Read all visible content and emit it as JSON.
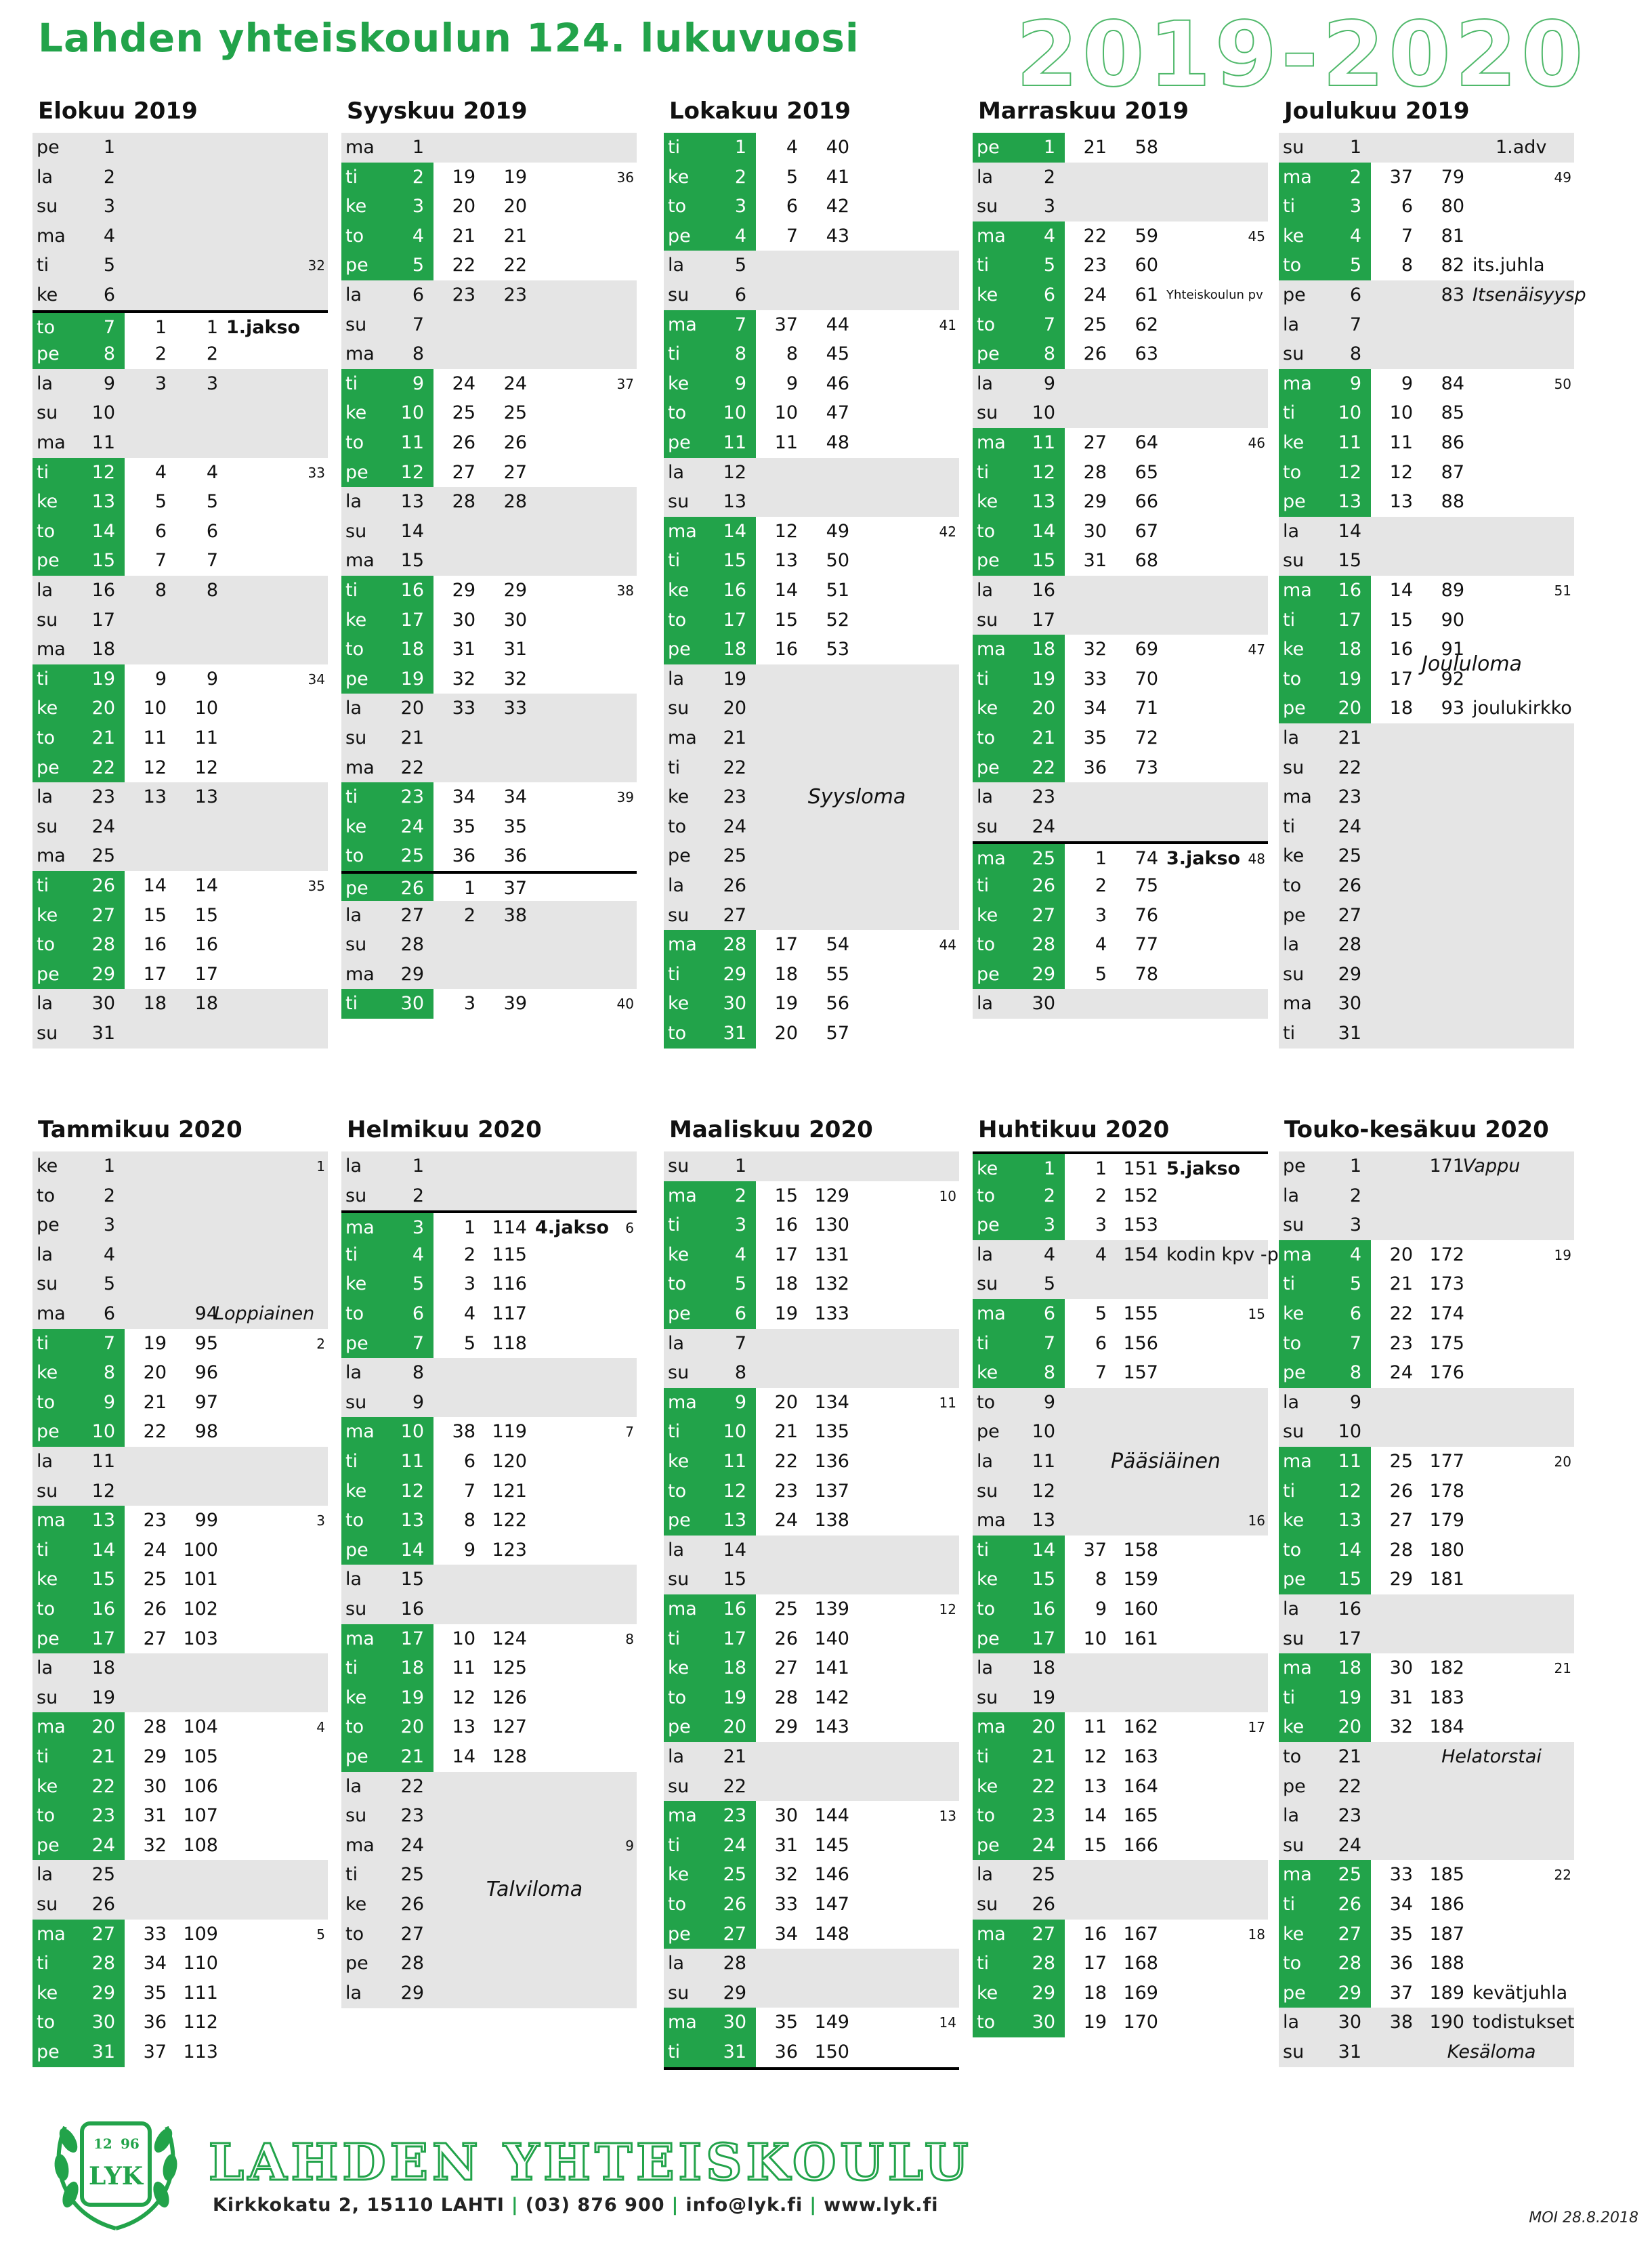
{
  "header": {
    "title": "Lahden  yhteiskoulun  124.  lukuvuosi",
    "year": "2019-2020"
  },
  "colors": {
    "green": "#22a34a",
    "weekend": "#e5e5e5"
  },
  "months": [
    {
      "title": "Elokuu 2019",
      "start": 5,
      "days": 31,
      "schoolStart": 7,
      "lessons": {
        "7": [
          1,
          1
        ],
        "8": [
          2,
          2
        ],
        "9": [
          3,
          3
        ],
        "12": [
          4,
          4
        ],
        "13": [
          5,
          5
        ],
        "14": [
          6,
          6
        ],
        "15": [
          7,
          7
        ],
        "16": [
          8,
          8
        ],
        "19": [
          9,
          9
        ],
        "20": [
          10,
          10
        ],
        "21": [
          11,
          11
        ],
        "22": [
          12,
          12
        ],
        "23": [
          13,
          13
        ],
        "26": [
          14,
          14
        ],
        "27": [
          15,
          15
        ],
        "28": [
          16,
          16
        ],
        "29": [
          17,
          17
        ],
        "30": [
          18,
          18
        ]
      },
      "weeks": {
        "5": "32",
        "12": "33",
        "19": "34",
        "26": "35"
      },
      "notes": {
        "7": "1.jakso"
      },
      "lines": [
        7
      ],
      "breaks": [],
      "label": null
    },
    {
      "title": "Syyskuu 2019",
      "start": 1,
      "days": 30,
      "schoolStart": 1,
      "lessons": {
        "2": [
          19,
          19
        ],
        "3": [
          20,
          20
        ],
        "4": [
          21,
          21
        ],
        "5": [
          22,
          22
        ],
        "6": [
          23,
          23
        ],
        "9": [
          24,
          24
        ],
        "10": [
          25,
          25
        ],
        "11": [
          26,
          26
        ],
        "12": [
          27,
          27
        ],
        "13": [
          28,
          28
        ],
        "16": [
          29,
          29
        ],
        "17": [
          30,
          30
        ],
        "18": [
          31,
          31
        ],
        "19": [
          32,
          32
        ],
        "20": [
          33,
          33
        ],
        "23": [
          34,
          34
        ],
        "24": [
          35,
          35
        ],
        "25": [
          36,
          36
        ],
        "26": [
          1,
          37
        ],
        "27": [
          2,
          38
        ],
        "30": [
          3,
          39
        ]
      },
      "weeks": {
        "2": "36",
        "9": "37",
        "16": "38",
        "23": "39",
        "30": "40"
      },
      "notes": {},
      "lines": [
        26
      ],
      "breaks": [],
      "label": null
    },
    {
      "title": "Lokakuu 2019",
      "start": 2,
      "days": 31,
      "schoolStart": 1,
      "lessons": {
        "1": [
          4,
          40
        ],
        "2": [
          5,
          41
        ],
        "3": [
          6,
          42
        ],
        "4": [
          7,
          43
        ],
        "7": [
          37,
          44
        ],
        "8": [
          8,
          45
        ],
        "9": [
          9,
          46
        ],
        "10": [
          10,
          47
        ],
        "11": [
          11,
          48
        ],
        "14": [
          12,
          49
        ],
        "15": [
          13,
          50
        ],
        "16": [
          14,
          51
        ],
        "17": [
          15,
          52
        ],
        "18": [
          16,
          53
        ],
        "28": [
          17,
          54
        ],
        "29": [
          18,
          55
        ],
        "30": [
          19,
          56
        ],
        "31": [
          20,
          57
        ]
      },
      "weeks": {
        "7": "41",
        "14": "42",
        "28": "44"
      },
      "notes": {},
      "lines": [],
      "breaks": [
        19,
        20,
        21,
        22,
        23,
        24,
        25,
        26,
        27
      ],
      "label": "Syysloma"
    },
    {
      "title": "Marraskuu 2019",
      "start": 5,
      "days": 30,
      "schoolStart": 1,
      "lessons": {
        "1": [
          21,
          58
        ],
        "4": [
          22,
          59
        ],
        "5": [
          23,
          60
        ],
        "6": [
          24,
          61
        ],
        "7": [
          25,
          62
        ],
        "8": [
          26,
          63
        ],
        "11": [
          27,
          64
        ],
        "12": [
          28,
          65
        ],
        "13": [
          29,
          66
        ],
        "14": [
          30,
          67
        ],
        "15": [
          31,
          68
        ],
        "18": [
          32,
          69
        ],
        "19": [
          33,
          70
        ],
        "20": [
          34,
          71
        ],
        "21": [
          35,
          72
        ],
        "22": [
          36,
          73
        ],
        "25": [
          1,
          74
        ],
        "26": [
          2,
          75
        ],
        "27": [
          3,
          76
        ],
        "28": [
          4,
          77
        ],
        "29": [
          5,
          78
        ]
      },
      "weeks": {
        "4": "45",
        "11": "46",
        "18": "47",
        "25": "48"
      },
      "notes": {
        "6": "Yhteiskoulun pv",
        "25": "3.jakso"
      },
      "lines": [
        25
      ],
      "breaks": [],
      "label": null
    },
    {
      "title": "Joulukuu 2019",
      "start": 7,
      "days": 31,
      "schoolStart": 1,
      "lessons": {
        "2": [
          37,
          79
        ],
        "3": [
          6,
          80
        ],
        "4": [
          7,
          81
        ],
        "5": [
          8,
          82
        ],
        "6": [
          "",
          83
        ],
        "9": [
          9,
          84
        ],
        "10": [
          10,
          85
        ],
        "11": [
          11,
          86
        ],
        "12": [
          12,
          87
        ],
        "13": [
          13,
          88
        ],
        "16": [
          14,
          89
        ],
        "17": [
          15,
          90
        ],
        "18": [
          16,
          91
        ],
        "19": [
          17,
          92
        ],
        "20": [
          18,
          93
        ]
      },
      "weeks": {
        "2": "49",
        "9": "50",
        "16": "51"
      },
      "notes": {
        "1": "1.adv",
        "5": "its.juhla",
        "6": "Itsenäisyysp",
        "20": "joulukirkko"
      },
      "lines": [],
      "breaks": [
        6,
        21,
        22,
        23,
        24,
        25,
        26,
        27,
        28,
        29,
        30,
        31
      ],
      "label": "Joululoma"
    },
    {
      "title": "Tammikuu 2020",
      "start": 3,
      "days": 31,
      "schoolStart": 1,
      "lessons": {
        "6": [
          "",
          94
        ],
        "7": [
          19,
          95
        ],
        "8": [
          20,
          96
        ],
        "9": [
          21,
          97
        ],
        "10": [
          22,
          98
        ],
        "13": [
          23,
          99
        ],
        "14": [
          24,
          100
        ],
        "15": [
          25,
          101
        ],
        "16": [
          26,
          102
        ],
        "17": [
          27,
          103
        ],
        "20": [
          28,
          104
        ],
        "21": [
          29,
          105
        ],
        "22": [
          30,
          106
        ],
        "23": [
          31,
          107
        ],
        "24": [
          32,
          108
        ],
        "27": [
          33,
          109
        ],
        "28": [
          34,
          110
        ],
        "29": [
          35,
          111
        ],
        "30": [
          36,
          112
        ],
        "31": [
          37,
          113
        ]
      },
      "weeks": {
        "1": "1",
        "7": "2",
        "13": "3",
        "20": "4",
        "27": "5"
      },
      "notes": {
        "6": "Loppiainen"
      },
      "lines": [],
      "breaks": [
        1,
        2,
        3,
        4,
        5,
        6
      ],
      "label": null
    },
    {
      "title": "Helmikuu 2020",
      "start": 6,
      "days": 29,
      "schoolStart": 1,
      "lessons": {
        "3": [
          1,
          114
        ],
        "4": [
          2,
          115
        ],
        "5": [
          3,
          116
        ],
        "6": [
          4,
          117
        ],
        "7": [
          5,
          118
        ],
        "10": [
          38,
          119
        ],
        "11": [
          6,
          120
        ],
        "12": [
          7,
          121
        ],
        "13": [
          8,
          122
        ],
        "14": [
          9,
          123
        ],
        "17": [
          10,
          124
        ],
        "18": [
          11,
          125
        ],
        "19": [
          12,
          126
        ],
        "20": [
          13,
          127
        ],
        "21": [
          14,
          128
        ]
      },
      "weeks": {
        "3": "6",
        "10": "7",
        "17": "8",
        "24": "9"
      },
      "notes": {
        "3": "4.jakso"
      },
      "lines": [
        3
      ],
      "breaks": [
        22,
        23,
        24,
        25,
        26,
        27,
        28,
        29
      ],
      "label": "Talviloma"
    },
    {
      "title": "Maaliskuu 2020",
      "start": 7,
      "days": 31,
      "schoolStart": 1,
      "lessons": {
        "2": [
          15,
          129
        ],
        "3": [
          16,
          130
        ],
        "4": [
          17,
          131
        ],
        "5": [
          18,
          132
        ],
        "6": [
          19,
          133
        ],
        "9": [
          20,
          134
        ],
        "10": [
          21,
          135
        ],
        "11": [
          22,
          136
        ],
        "12": [
          23,
          137
        ],
        "13": [
          24,
          138
        ],
        "16": [
          25,
          139
        ],
        "17": [
          26,
          140
        ],
        "18": [
          27,
          141
        ],
        "19": [
          28,
          142
        ],
        "20": [
          29,
          143
        ],
        "23": [
          30,
          144
        ],
        "24": [
          31,
          145
        ],
        "25": [
          32,
          146
        ],
        "26": [
          33,
          147
        ],
        "27": [
          34,
          148
        ],
        "30": [
          35,
          149
        ],
        "31": [
          36,
          150
        ]
      },
      "weeks": {
        "2": "10",
        "9": "11",
        "16": "12",
        "23": "13",
        "30": "14"
      },
      "notes": {},
      "lines": [
        32
      ],
      "breaks": [],
      "label": null
    },
    {
      "title": "Huhtikuu 2020",
      "start": 3,
      "days": 30,
      "schoolStart": 1,
      "lessons": {
        "1": [
          1,
          151
        ],
        "2": [
          2,
          152
        ],
        "3": [
          3,
          153
        ],
        "4": [
          4,
          154
        ],
        "6": [
          5,
          155
        ],
        "7": [
          6,
          156
        ],
        "8": [
          7,
          157
        ],
        "14": [
          37,
          158
        ],
        "15": [
          8,
          159
        ],
        "16": [
          9,
          160
        ],
        "17": [
          10,
          161
        ],
        "20": [
          11,
          162
        ],
        "21": [
          12,
          163
        ],
        "22": [
          13,
          164
        ],
        "23": [
          14,
          165
        ],
        "24": [
          15,
          166
        ],
        "27": [
          16,
          167
        ],
        "28": [
          17,
          168
        ],
        "29": [
          18,
          169
        ],
        "30": [
          19,
          170
        ]
      },
      "weeks": {
        "6": "15",
        "13": "16",
        "20": "17",
        "27": "18"
      },
      "notes": {
        "1": "5.jakso",
        "4": "kodin kpv -pe"
      },
      "lines": [
        1
      ],
      "breaks": [
        9,
        10,
        11,
        12,
        13
      ],
      "label": "Pääsiäinen"
    },
    {
      "title": "Touko-kesäkuu 2020",
      "start": 5,
      "days": 31,
      "schoolStart": 1,
      "lessons": {
        "1": [
          "",
          171
        ],
        "4": [
          20,
          172
        ],
        "5": [
          21,
          173
        ],
        "6": [
          22,
          174
        ],
        "7": [
          23,
          175
        ],
        "8": [
          24,
          176
        ],
        "11": [
          25,
          177
        ],
        "12": [
          26,
          178
        ],
        "13": [
          27,
          179
        ],
        "14": [
          28,
          180
        ],
        "15": [
          29,
          181
        ],
        "18": [
          30,
          182
        ],
        "19": [
          31,
          183
        ],
        "20": [
          32,
          184
        ],
        "25": [
          33,
          185
        ],
        "26": [
          34,
          186
        ],
        "27": [
          35,
          187
        ],
        "28": [
          36,
          188
        ],
        "29": [
          37,
          189
        ],
        "30": [
          38,
          190
        ]
      },
      "weeks": {
        "4": "19",
        "11": "20",
        "18": "21",
        "25": "22"
      },
      "notes": {
        "1": "Vappu",
        "21": "Helatorstai",
        "29": "kevätjuhla",
        "30": "todistukset",
        "31": "Kesäloma"
      },
      "lines": [],
      "breaks": [
        1,
        21,
        22,
        31
      ],
      "label": null
    }
  ],
  "weekdays": [
    "ma",
    "ti",
    "ke",
    "to",
    "pe",
    "la",
    "su"
  ],
  "footer": {
    "school": "LAHDEN YHTEISKOULU",
    "address": "Kirkkokatu 2, 15110 LAHTI",
    "phone": "(03) 876 900",
    "email": "info@lyk.fi",
    "web": "www.lyk.fi",
    "logo_text": "LYK",
    "logo_year_left": "12",
    "logo_year_right": "96",
    "signature": "MOI 28.8.2018"
  }
}
